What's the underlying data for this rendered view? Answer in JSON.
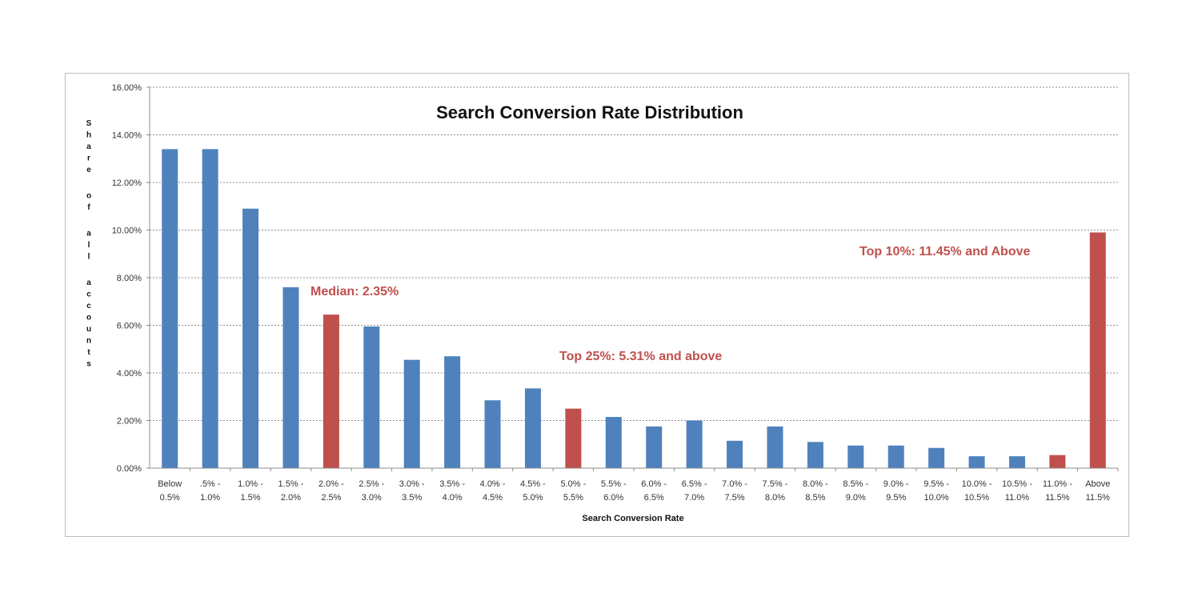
{
  "chart_data": {
    "type": "bar",
    "title": "Search Conversion Rate Distribution",
    "xlabel": "Search Conversion Rate",
    "ylabel": "Share of all accounts",
    "ylim": [
      0,
      16
    ],
    "yticks": [
      "0.00%",
      "2.00%",
      "4.00%",
      "6.00%",
      "8.00%",
      "10.00%",
      "12.00%",
      "14.00%",
      "16.00%"
    ],
    "grid": true,
    "categories": [
      [
        "Below",
        "0.5%"
      ],
      [
        ".5% -",
        "1.0%"
      ],
      [
        "1.0% -",
        "1.5%"
      ],
      [
        "1.5% -",
        "2.0%"
      ],
      [
        "2.0% -",
        "2.5%"
      ],
      [
        "2.5% -",
        "3.0%"
      ],
      [
        "3.0% -",
        "3.5%"
      ],
      [
        "3.5% -",
        "4.0%"
      ],
      [
        "4.0% -",
        "4.5%"
      ],
      [
        "4.5% -",
        "5.0%"
      ],
      [
        "5.0% -",
        "5.5%"
      ],
      [
        "5.5% -",
        "6.0%"
      ],
      [
        "6.0% -",
        "6.5%"
      ],
      [
        "6.5% -",
        "7.0%"
      ],
      [
        "7.0% -",
        "7.5%"
      ],
      [
        "7.5% -",
        "8.0%"
      ],
      [
        "8.0% -",
        "8.5%"
      ],
      [
        "8.5% -",
        "9.0%"
      ],
      [
        "9.0% -",
        "9.5%"
      ],
      [
        "9.5% -",
        "10.0%"
      ],
      [
        "10.0% -",
        "10.5%"
      ],
      [
        "10.5% -",
        "11.0%"
      ],
      [
        "11.0% -",
        "11.5%"
      ],
      [
        "Above",
        "11.5%"
      ]
    ],
    "values": [
      13.4,
      13.4,
      10.9,
      7.6,
      6.45,
      5.95,
      4.55,
      4.7,
      2.85,
      3.35,
      2.5,
      2.15,
      1.75,
      2.0,
      1.15,
      1.75,
      1.1,
      0.95,
      0.95,
      0.85,
      0.5,
      0.5,
      0.55,
      9.9
    ],
    "highlighted": [
      4,
      10,
      22,
      23
    ],
    "colors": {
      "bar": "#4f81bd",
      "highlight": "#c0504d",
      "grid": "#8c8c8c",
      "axis": "#8c8c8c",
      "annotation": "#c0504d"
    },
    "annotations": [
      {
        "text": "Median: 2.35%"
      },
      {
        "text": "Top 25%: 5.31% and above"
      },
      {
        "text": "Top 10%: 11.45% and Above"
      }
    ]
  }
}
